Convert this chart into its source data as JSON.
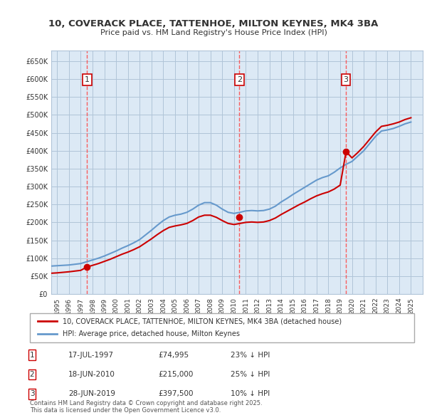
{
  "title": "10, COVERACK PLACE, TATTENHOE, MILTON KEYNES, MK4 3BA",
  "subtitle": "Price paid vs. HM Land Registry's House Price Index (HPI)",
  "background_color": "#dce9f5",
  "plot_bg_color": "#dce9f5",
  "legend_label_red": "10, COVERACK PLACE, TATTENHOE, MILTON KEYNES, MK4 3BA (detached house)",
  "legend_label_blue": "HPI: Average price, detached house, Milton Keynes",
  "footer": "Contains HM Land Registry data © Crown copyright and database right 2025.\nThis data is licensed under the Open Government Licence v3.0.",
  "sales": [
    {
      "num": 1,
      "date": "17-JUL-1997",
      "price": 74995,
      "pct": "23%",
      "year": 1997.54
    },
    {
      "num": 2,
      "date": "18-JUN-2010",
      "price": 215000,
      "pct": "25%",
      "year": 2010.46
    },
    {
      "num": 3,
      "date": "28-JUN-2019",
      "price": 397500,
      "pct": "10%",
      "year": 2019.49
    }
  ],
  "table_rows": [
    [
      "1",
      "17-JUL-1997",
      "£74,995",
      "23% ↓ HPI"
    ],
    [
      "2",
      "18-JUN-2010",
      "£215,000",
      "25% ↓ HPI"
    ],
    [
      "3",
      "28-JUN-2019",
      "£397,500",
      "10% ↓ HPI"
    ]
  ],
  "ylim": [
    0,
    680000
  ],
  "xlim_start": 1994.5,
  "xlim_end": 2026.0,
  "yticks": [
    0,
    50000,
    100000,
    150000,
    200000,
    250000,
    300000,
    350000,
    400000,
    450000,
    500000,
    550000,
    600000,
    650000
  ],
  "ytick_labels": [
    "£0",
    "£50K",
    "£100K",
    "£150K",
    "£200K",
    "£250K",
    "£300K",
    "£350K",
    "£400K",
    "£450K",
    "£500K",
    "£550K",
    "£600K",
    "£650K"
  ],
  "xticks": [
    1995,
    1996,
    1997,
    1998,
    1999,
    2000,
    2001,
    2002,
    2003,
    2004,
    2005,
    2006,
    2007,
    2008,
    2009,
    2010,
    2011,
    2012,
    2013,
    2014,
    2015,
    2016,
    2017,
    2018,
    2019,
    2020,
    2021,
    2022,
    2023,
    2024,
    2025
  ],
  "red_color": "#cc0000",
  "blue_color": "#6699cc",
  "vline_color": "#ff4444",
  "grid_color": "#b0c4d8",
  "hpi_data_x": [
    1994.5,
    1995.0,
    1995.5,
    1996.0,
    1996.5,
    1997.0,
    1997.5,
    1998.0,
    1998.5,
    1999.0,
    1999.5,
    2000.0,
    2000.5,
    2001.0,
    2001.5,
    2002.0,
    2002.5,
    2003.0,
    2003.5,
    2004.0,
    2004.5,
    2005.0,
    2005.5,
    2006.0,
    2006.5,
    2007.0,
    2007.5,
    2008.0,
    2008.5,
    2009.0,
    2009.5,
    2010.0,
    2010.5,
    2011.0,
    2011.5,
    2012.0,
    2012.5,
    2013.0,
    2013.5,
    2014.0,
    2014.5,
    2015.0,
    2015.5,
    2016.0,
    2016.5,
    2017.0,
    2017.5,
    2018.0,
    2018.5,
    2019.0,
    2019.5,
    2020.0,
    2020.5,
    2021.0,
    2021.5,
    2022.0,
    2022.5,
    2023.0,
    2023.5,
    2024.0,
    2024.5,
    2025.0
  ],
  "hpi_data_y": [
    78000,
    79000,
    80000,
    81000,
    83000,
    85000,
    90000,
    95000,
    100000,
    106000,
    113000,
    120000,
    128000,
    135000,
    143000,
    152000,
    165000,
    178000,
    192000,
    205000,
    215000,
    220000,
    223000,
    228000,
    237000,
    248000,
    255000,
    255000,
    248000,
    237000,
    228000,
    225000,
    228000,
    232000,
    233000,
    232000,
    233000,
    237000,
    245000,
    257000,
    267000,
    278000,
    288000,
    298000,
    308000,
    318000,
    325000,
    330000,
    340000,
    352000,
    362000,
    370000,
    385000,
    400000,
    420000,
    440000,
    455000,
    458000,
    462000,
    468000,
    475000,
    480000
  ],
  "red_data_x": [
    1994.5,
    1995.0,
    1995.5,
    1996.0,
    1996.5,
    1997.0,
    1997.5,
    1998.0,
    1998.5,
    1999.0,
    1999.5,
    2000.0,
    2000.5,
    2001.0,
    2001.5,
    2002.0,
    2002.5,
    2003.0,
    2003.5,
    2004.0,
    2004.5,
    2005.0,
    2005.5,
    2006.0,
    2006.5,
    2007.0,
    2007.5,
    2008.0,
    2008.5,
    2009.0,
    2009.5,
    2010.0,
    2010.5,
    2011.0,
    2011.5,
    2012.0,
    2012.5,
    2013.0,
    2013.5,
    2014.0,
    2014.5,
    2015.0,
    2015.5,
    2016.0,
    2016.5,
    2017.0,
    2017.5,
    2018.0,
    2018.5,
    2019.0,
    2019.5,
    2020.0,
    2020.5,
    2021.0,
    2021.5,
    2022.0,
    2022.5,
    2023.0,
    2023.5,
    2024.0,
    2024.5,
    2025.0
  ],
  "red_data_y": [
    58000,
    59000,
    60500,
    62000,
    64000,
    66000,
    74995,
    80000,
    85000,
    91000,
    97000,
    104000,
    111000,
    117000,
    124000,
    132000,
    143000,
    154000,
    166000,
    177000,
    186000,
    190000,
    193000,
    197000,
    205000,
    215000,
    220000,
    220000,
    214000,
    205000,
    197000,
    194000,
    197000,
    200000,
    201000,
    200000,
    201000,
    205000,
    212000,
    222000,
    231000,
    240000,
    249000,
    257000,
    266000,
    274000,
    280000,
    285000,
    293000,
    304000,
    397500,
    380000,
    395000,
    412000,
    432000,
    452000,
    468000,
    471000,
    475000,
    480000,
    487000,
    492000
  ]
}
